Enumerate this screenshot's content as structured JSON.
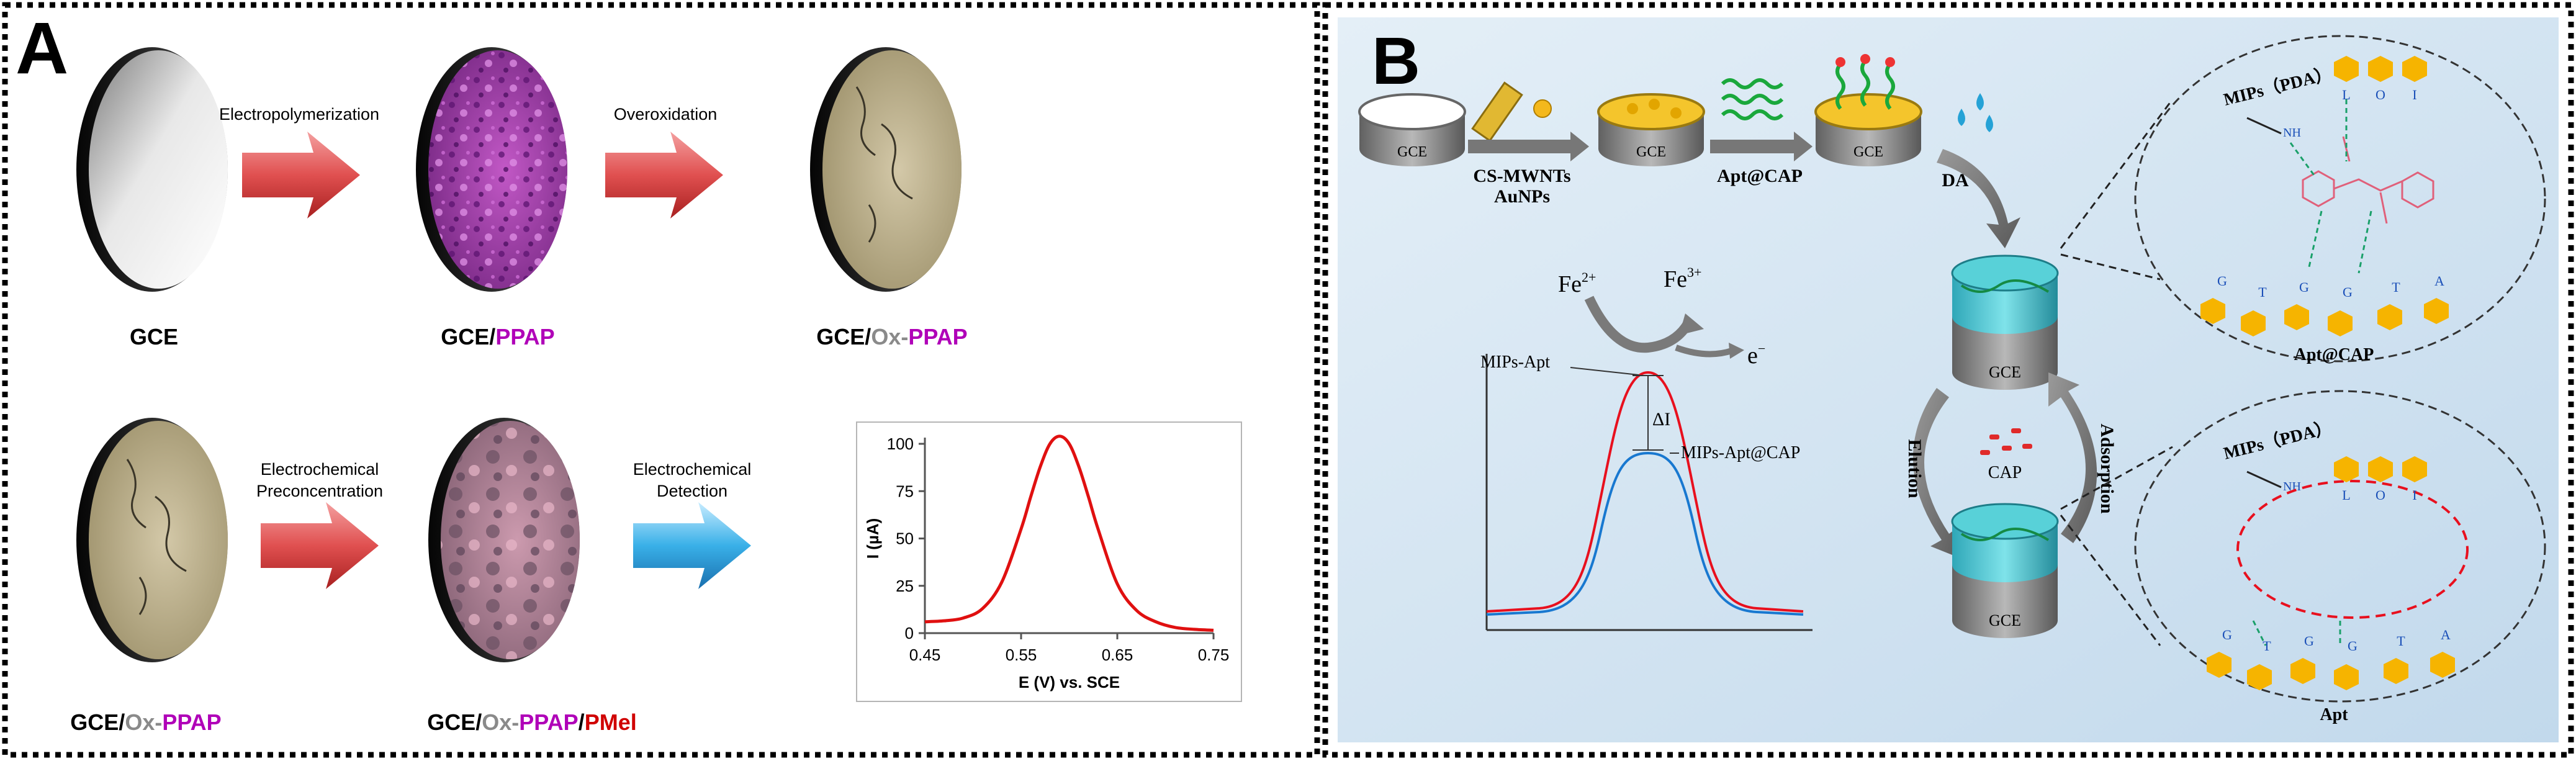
{
  "panelA": {
    "label": "A",
    "steps": {
      "electropolymerization": "Electropolymerization",
      "overoxidation": "Overoxidation",
      "preconcentration_l1": "Electrochemical",
      "preconcentration_l2": "Preconcentration",
      "detection_l1": "Electrochemical",
      "detection_l2": "Detection"
    },
    "captions": {
      "gce": "GCE",
      "gce_ppap": {
        "base": "GCE/",
        "ppap": "PPAP"
      },
      "gce_ox_ppap": {
        "base": "GCE/",
        "ox": "Ox-",
        "ppap": "PPAP"
      },
      "gce_ox_ppap_2": {
        "base": "GCE/",
        "ox": "Ox-",
        "ppap": "PPAP"
      },
      "gce_ox_ppap_pmel": {
        "base": "GCE/",
        "ox": "Ox-",
        "ppap": "PPAP",
        "sep": "/",
        "pmel": "PMel"
      }
    },
    "colors": {
      "ppap": "#b000b8",
      "ox": "#8a8a8a",
      "pmel": "#d00000",
      "arrow": "#e05050",
      "detect_arrow": "#39b0e8"
    }
  },
  "chart_data": {
    "type": "line",
    "title": "",
    "xlabel": "E (V) vs. SCE",
    "ylabel": "I (µA)",
    "xlim": [
      0.45,
      0.75
    ],
    "ylim": [
      0,
      100
    ],
    "xticks": [
      "0.45",
      "0.55",
      "0.65",
      "0.75"
    ],
    "yticks": [
      "0",
      "25",
      "50",
      "75",
      "100"
    ],
    "peak": {
      "x": 0.59,
      "y": 104
    },
    "series": [
      {
        "name": "peak",
        "color": "#e01010",
        "x": [
          0.45,
          0.47,
          0.49,
          0.51,
          0.53,
          0.55,
          0.56,
          0.57,
          0.58,
          0.59,
          0.6,
          0.61,
          0.62,
          0.63,
          0.65,
          0.67,
          0.69,
          0.71,
          0.73,
          0.75
        ],
        "y": [
          6,
          6.5,
          8,
          13,
          27,
          55,
          72,
          88,
          100,
          104,
          100,
          88,
          72,
          55,
          26,
          12,
          6,
          3,
          2,
          1.5
        ]
      }
    ]
  },
  "panelB": {
    "label": "B",
    "electrode": "GCE",
    "steps": {
      "cs_mwnts": "CS-MWNTs",
      "aunps": "AuNPs",
      "apt_cap": "Apt@CAP",
      "da": "DA",
      "elution": "Elution",
      "adsorption": "Adsorption",
      "cap": "CAP"
    },
    "redox": {
      "fe2": "Fe",
      "fe2_sup": "2+",
      "fe3": "Fe",
      "fe3_sup": "3+",
      "electron": "e",
      "electron_sup": "−"
    },
    "inset": {
      "mips_apt": "MIPs-Apt",
      "mips_apt_cap": "MIPs-Apt@CAP",
      "delta_i": "ΔI"
    },
    "zoom_top": {
      "mips": "MIPs（PDA）",
      "nh": "NH",
      "top_bases": [
        "L",
        "O",
        "I"
      ],
      "bottom_bases": [
        "G",
        "T",
        "G",
        "G",
        "T",
        "A"
      ],
      "caption": "Apt@CAP"
    },
    "zoom_bottom": {
      "mips": "MIPs（PDA）",
      "nh": "NH",
      "top_bases": [
        "L",
        "O",
        "I"
      ],
      "bottom_bases": [
        "G",
        "T",
        "G",
        "G",
        "T",
        "A"
      ],
      "caption": "Apt"
    },
    "colors": {
      "red_curve": "#e8101e",
      "blue_curve": "#1878d0",
      "au": "#f4b81c",
      "background": "#d4e6f2"
    }
  }
}
